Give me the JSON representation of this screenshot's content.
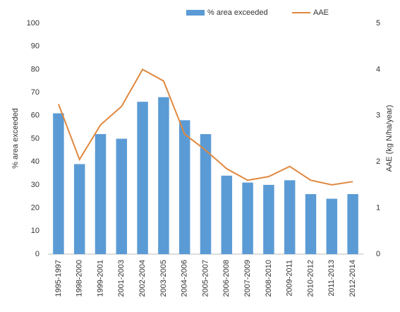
{
  "chart_data": {
    "type": "bar_line",
    "categories": [
      "1995-1997",
      "1998-2000",
      "1999-2001",
      "2001-2003",
      "2002-2004",
      "2003-2005",
      "2004-2006",
      "2005-2007",
      "2006-2008",
      "2007-2009",
      "2008-2010",
      "2009-2011",
      "2010-2012",
      "2011-2013",
      "2012-2014"
    ],
    "series": [
      {
        "name": "% area exceeded",
        "type": "bar",
        "color": "#5b9bd5",
        "values": [
          61,
          39,
          52,
          50,
          66,
          68,
          58,
          52,
          34,
          31,
          30,
          32,
          26,
          24,
          26
        ]
      },
      {
        "name": "AAE",
        "type": "line",
        "axis": "y2",
        "color": "#e0883f",
        "values": [
          3.25,
          2.05,
          2.8,
          3.2,
          4.0,
          3.75,
          2.6,
          2.25,
          1.85,
          1.6,
          1.68,
          1.9,
          1.6,
          1.5,
          1.57
        ]
      }
    ],
    "y_label": "% area exceeded",
    "y2_label": "AAE (kg N/ha/year)",
    "ylim": [
      0,
      100
    ],
    "yticks": [
      0,
      10,
      20,
      30,
      40,
      50,
      60,
      70,
      80,
      90,
      100
    ],
    "y2lim": [
      0,
      5
    ],
    "y2ticks": [
      0,
      1,
      2,
      3,
      4,
      5
    ],
    "grid": false,
    "legend": "top"
  }
}
